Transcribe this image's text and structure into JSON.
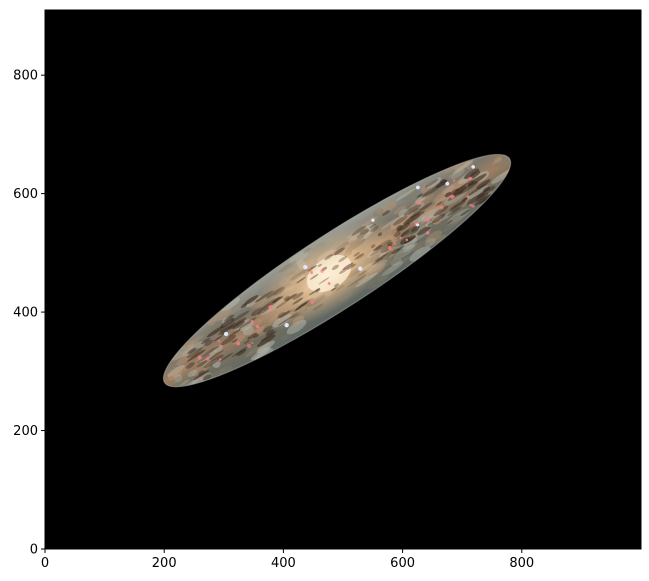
{
  "figure": {
    "background_color": "#ffffff",
    "image_background_color": "#000000",
    "subject": "edge-on spiral galaxy, masked to an elliptical region"
  },
  "axes": {
    "x_ticks": [
      0,
      200,
      400,
      600,
      800
    ],
    "y_ticks": [
      0,
      200,
      400,
      600,
      800
    ],
    "x_range": [
      0,
      1000
    ],
    "y_range": [
      0,
      910
    ],
    "y_origin": "bottom"
  },
  "galaxy_mask": {
    "center": [
      490,
      470
    ],
    "semi_major": 345,
    "semi_minor": 62,
    "angle_deg": 33,
    "colors": {
      "core": "#fff1d8",
      "inner": "#f0c99a",
      "mid": "#b89474",
      "outer": "#7d7868",
      "rim": "#b7bbb2",
      "dust": "#3a2a1e",
      "hii": "#ff7a8a",
      "star": "#dde8ff"
    }
  }
}
